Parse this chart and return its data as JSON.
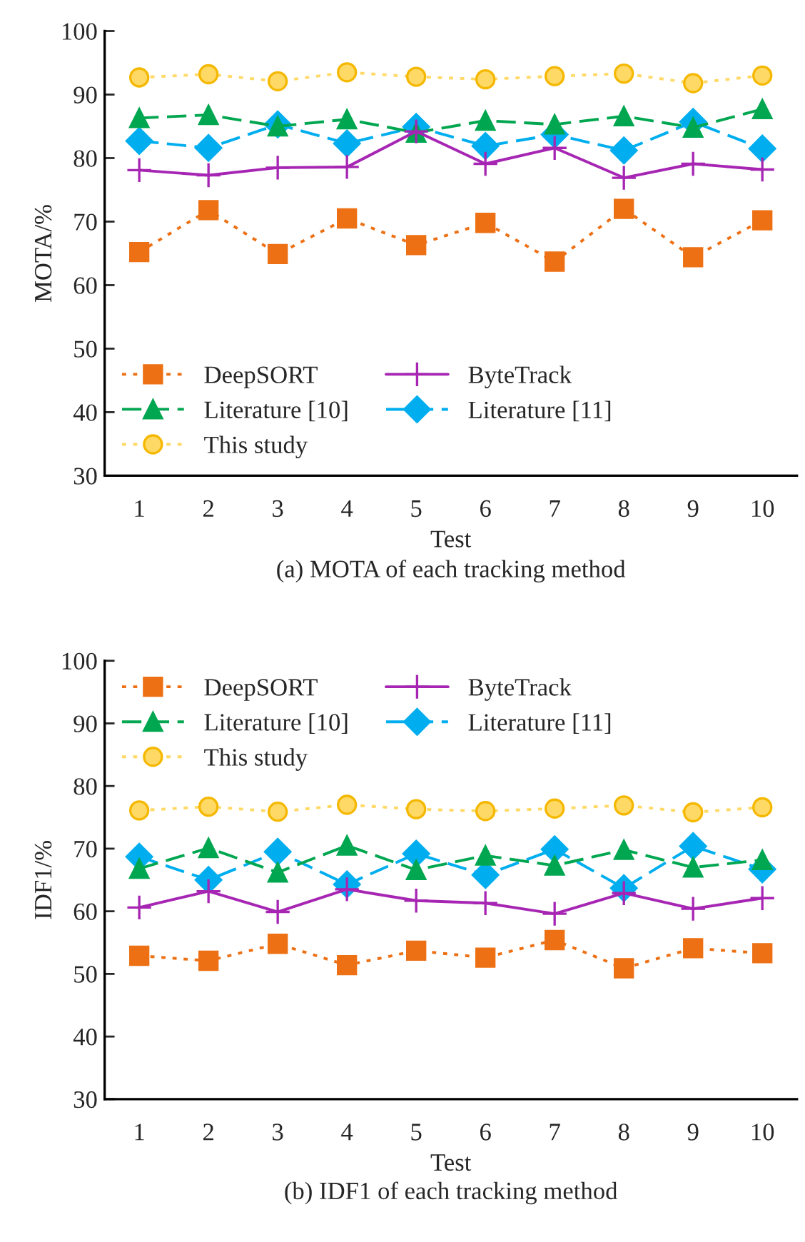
{
  "chart_data": [
    {
      "type": "line",
      "title": "(a) MOTA of each tracking method",
      "xlabel": "Test",
      "ylabel": "MOTA/%",
      "categories": [
        "1",
        "2",
        "3",
        "4",
        "5",
        "6",
        "7",
        "8",
        "9",
        "10"
      ],
      "ylim": [
        30,
        100
      ],
      "yticks": [
        30,
        40,
        50,
        60,
        70,
        80,
        90,
        100
      ],
      "grid": false,
      "legend": "bottom left",
      "series": [
        {
          "name": "DeepSORT",
          "color": "#ed7014",
          "marker": "square",
          "line_style": "dotted",
          "values": [
            65.2,
            71.8,
            64.9,
            70.5,
            66.3,
            69.8,
            63.7,
            72.0,
            64.4,
            70.2
          ]
        },
        {
          "name": "ByteTrack",
          "color": "#a626b3",
          "marker": "cross",
          "line_style": "solid",
          "values": [
            78.1,
            77.3,
            78.5,
            78.6,
            84.2,
            79.1,
            81.6,
            76.9,
            79.1,
            78.2
          ]
        },
        {
          "name": "Literature [10]",
          "color": "#00a650",
          "marker": "triangle",
          "line_style": "dashed",
          "values": [
            86.3,
            86.8,
            85.0,
            86.1,
            84.0,
            85.9,
            85.3,
            86.6,
            84.8,
            87.7
          ]
        },
        {
          "name": "Literature [11]",
          "color": "#00aeef",
          "marker": "diamond",
          "line_style": "dashed",
          "values": [
            82.7,
            81.6,
            85.3,
            82.3,
            84.9,
            81.9,
            83.7,
            81.2,
            85.7,
            81.5
          ]
        },
        {
          "name": "This study",
          "color": "#ffd966",
          "marker": "circle",
          "line_style": "dotted",
          "values": [
            92.7,
            93.2,
            92.1,
            93.5,
            92.8,
            92.4,
            92.9,
            93.3,
            91.8,
            93.0
          ]
        }
      ]
    },
    {
      "type": "line",
      "title": "(b) IDF1 of each tracking method",
      "xlabel": "Test",
      "ylabel": "IDF1/%",
      "categories": [
        "1",
        "2",
        "3",
        "4",
        "5",
        "6",
        "7",
        "8",
        "9",
        "10"
      ],
      "ylim": [
        30,
        100
      ],
      "yticks": [
        30,
        40,
        50,
        60,
        70,
        80,
        90,
        100
      ],
      "grid": false,
      "legend": "top left",
      "series": [
        {
          "name": "DeepSORT",
          "color": "#ed7014",
          "marker": "square",
          "line_style": "dotted",
          "values": [
            52.9,
            52.1,
            54.8,
            51.4,
            53.7,
            52.6,
            55.4,
            50.9,
            54.1,
            53.3
          ]
        },
        {
          "name": "ByteTrack",
          "color": "#a626b3",
          "marker": "cross",
          "line_style": "solid",
          "values": [
            60.6,
            63.2,
            59.9,
            63.5,
            61.7,
            61.3,
            59.6,
            62.9,
            60.4,
            62.1
          ]
        },
        {
          "name": "Literature [10]",
          "color": "#00a650",
          "marker": "triangle",
          "line_style": "dashed",
          "values": [
            66.8,
            70.1,
            66.2,
            70.5,
            66.6,
            68.9,
            67.3,
            69.8,
            67.0,
            68.2
          ]
        },
        {
          "name": "Literature [11]",
          "color": "#00aeef",
          "marker": "diamond",
          "line_style": "dashed",
          "values": [
            68.7,
            65.0,
            69.5,
            64.3,
            69.2,
            65.8,
            69.9,
            63.7,
            70.4,
            66.7
          ]
        },
        {
          "name": "This study",
          "color": "#ffd966",
          "marker": "circle",
          "line_style": "dotted",
          "values": [
            76.1,
            76.7,
            75.9,
            77.0,
            76.3,
            76.0,
            76.4,
            76.9,
            75.8,
            76.6
          ]
        }
      ]
    }
  ]
}
